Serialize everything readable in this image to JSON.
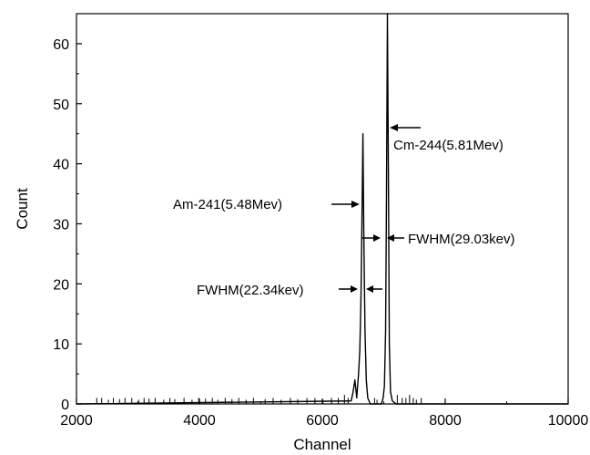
{
  "chart_data": {
    "type": "line",
    "title": "",
    "xlabel": "Channel",
    "ylabel": "Count",
    "xlim": [
      2000,
      10000
    ],
    "ylim": [
      0,
      65
    ],
    "x_ticks": [
      2000,
      4000,
      6000,
      8000,
      10000
    ],
    "y_ticks": [
      0,
      10,
      20,
      30,
      40,
      50,
      60
    ],
    "grid": false,
    "series": [
      {
        "points": [
          [
            2000,
            0
          ],
          [
            6470,
            0.5
          ],
          [
            6500,
            2
          ],
          [
            6530,
            4
          ],
          [
            6560,
            1
          ],
          [
            6590,
            5
          ],
          [
            6610,
            9
          ],
          [
            6630,
            18
          ],
          [
            6645,
            30
          ],
          [
            6660,
            45
          ],
          [
            6675,
            28
          ],
          [
            6695,
            12
          ],
          [
            6715,
            4
          ],
          [
            6740,
            1
          ],
          [
            6780,
            0
          ],
          [
            6960,
            0
          ],
          [
            6990,
            1
          ],
          [
            7010,
            3
          ],
          [
            7030,
            12
          ],
          [
            7045,
            35
          ],
          [
            7060,
            65
          ],
          [
            7075,
            38
          ],
          [
            7090,
            10
          ],
          [
            7110,
            2
          ],
          [
            7140,
            0.5
          ],
          [
            7200,
            0
          ],
          [
            10000,
            0
          ]
        ]
      }
    ],
    "noise_spikes": [
      [
        2330,
        1
      ],
      [
        2410,
        1
      ],
      [
        2520,
        0.7
      ],
      [
        2600,
        1
      ],
      [
        2700,
        0.8
      ],
      [
        2790,
        1
      ],
      [
        2900,
        1
      ],
      [
        3010,
        0.7
      ],
      [
        3100,
        1
      ],
      [
        3180,
        0.9
      ],
      [
        3280,
        1
      ],
      [
        3420,
        0.7
      ],
      [
        3520,
        1
      ],
      [
        3600,
        0.8
      ],
      [
        3750,
        1
      ],
      [
        3880,
        0.7
      ],
      [
        3990,
        1
      ],
      [
        4100,
        0.9
      ],
      [
        4210,
        1
      ],
      [
        4300,
        0.7
      ],
      [
        4420,
        1
      ],
      [
        4530,
        0.8
      ],
      [
        4640,
        1
      ],
      [
        4760,
        0.7
      ],
      [
        4880,
        1
      ],
      [
        5070,
        0.8
      ],
      [
        5200,
        1
      ],
      [
        5330,
        0.7
      ],
      [
        5480,
        1
      ],
      [
        5600,
        0.8
      ],
      [
        5750,
        1
      ],
      [
        5880,
        1
      ],
      [
        6010,
        0.7
      ],
      [
        6150,
        1
      ],
      [
        6260,
        1
      ],
      [
        6360,
        1.5
      ],
      [
        6420,
        1
      ],
      [
        6850,
        1
      ],
      [
        6890,
        0.7
      ],
      [
        7220,
        1.5
      ],
      [
        7300,
        1
      ],
      [
        7360,
        1
      ],
      [
        7420,
        1.5
      ],
      [
        7480,
        1
      ],
      [
        7530,
        0.7
      ],
      [
        7610,
        1
      ]
    ],
    "annotations": [
      {
        "text": "Cm-244(5.81Mev)"
      },
      {
        "text": "Am-241(5.48Mev)"
      },
      {
        "text": "FWHM(29.03kev)"
      },
      {
        "text": "FWHM(22.34kev)"
      }
    ]
  }
}
